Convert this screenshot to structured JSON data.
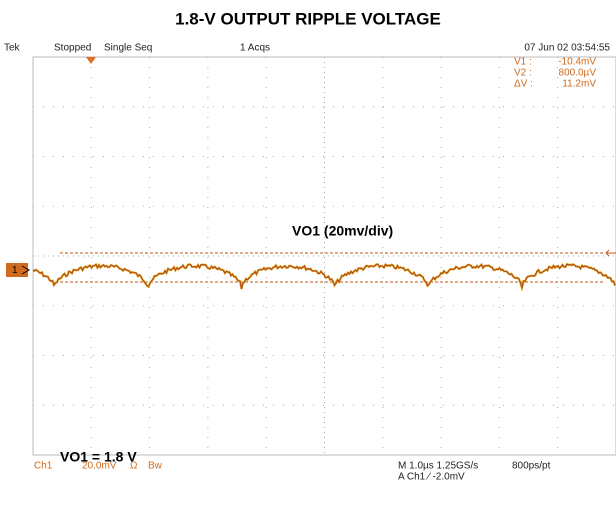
{
  "title": "1.8-V OUTPUT RIPPLE VOLTAGE",
  "status_bar": {
    "brand": "Tek",
    "state": "Stopped",
    "mode": "Single Seq",
    "acqs": "1 Acqs",
    "datetime": "07 Jun 02 03:54:55"
  },
  "cursors": [
    {
      "name": "V1 :",
      "value": "-10.4mV"
    },
    {
      "name": "V2 :",
      "value": "800.0µV"
    },
    {
      "name": "ΔV :",
      "value": "11.2mV"
    }
  ],
  "channel_marker": "1",
  "annotations": {
    "trace_label": "VO1 (20mv/div)",
    "voltage_label": "VO1 = 1.8 V"
  },
  "footer": {
    "channel": "Ch1",
    "scale": "20.0mV",
    "coupling": "Ω",
    "bw": "Bw",
    "timebase": "M 1.0µs 1.25GS/s",
    "resolution": "800ps/pt",
    "trigger": "A  Ch1  ∕  -2.0mV"
  }
}
